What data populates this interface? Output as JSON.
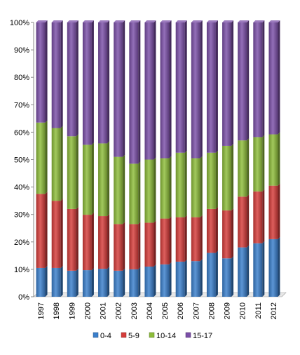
{
  "chart_data": {
    "type": "bar",
    "stacked": "percent",
    "categories": [
      "1997",
      "1998",
      "1999",
      "2000",
      "2001",
      "2002",
      "2003",
      "2004",
      "2005",
      "2006",
      "2007",
      "2008",
      "2009",
      "2010",
      "2011",
      "2012"
    ],
    "series": [
      {
        "name": "0-4",
        "color": "#3a7fcc",
        "values": [
          10.5,
          10.5,
          9.5,
          9.7,
          10.2,
          9.5,
          10.0,
          11.0,
          11.8,
          12.8,
          13.0,
          16.0,
          14.0,
          18.0,
          19.5,
          21.0
        ]
      },
      {
        "name": "5-9",
        "color": "#d63c3a",
        "values": [
          27.0,
          24.5,
          22.5,
          20.2,
          19.2,
          17.0,
          16.5,
          16.0,
          16.7,
          16.2,
          16.0,
          16.0,
          17.5,
          18.5,
          18.9,
          19.5
        ]
      },
      {
        "name": "10-14",
        "color": "#8dbd3a",
        "values": [
          26.0,
          26.5,
          26.5,
          25.5,
          26.5,
          24.5,
          22.0,
          23.0,
          22.0,
          23.5,
          21.5,
          20.5,
          23.5,
          20.5,
          19.8,
          18.7
        ]
      },
      {
        "name": "15-17",
        "color": "#7b4fa8",
        "values": [
          36.5,
          38.5,
          41.5,
          44.6,
          44.1,
          49.0,
          51.5,
          50.0,
          49.5,
          47.5,
          49.5,
          47.5,
          45.0,
          43.0,
          41.8,
          40.8
        ]
      }
    ],
    "y_ticks": [
      "0%",
      "10%",
      "20%",
      "30%",
      "40%",
      "50%",
      "60%",
      "70%",
      "80%",
      "90%",
      "100%"
    ],
    "ylim": [
      0,
      100
    ],
    "grid": false,
    "legend_position": "bottom"
  }
}
